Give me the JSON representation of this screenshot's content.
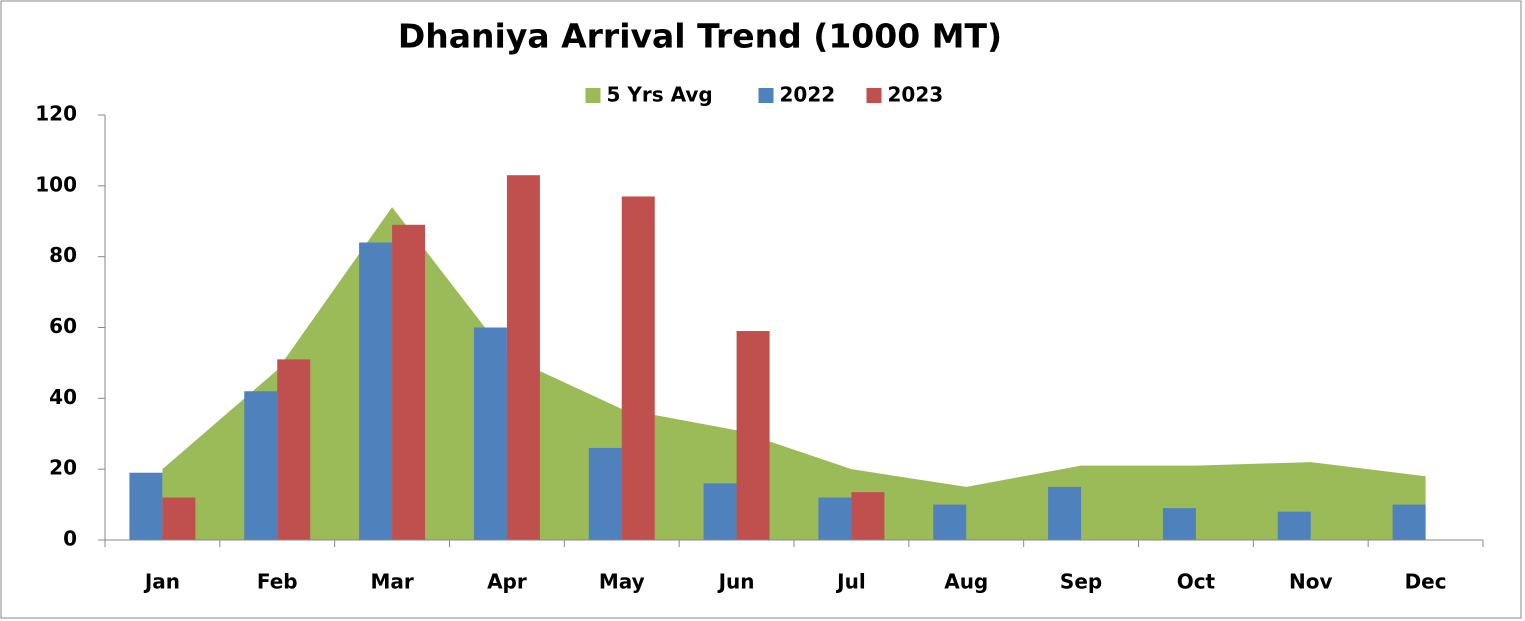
{
  "chart_data": {
    "type": "bar",
    "title": "Dhaniya Arrival Trend (1000 MT)",
    "categories": [
      "Jan",
      "Feb",
      "Mar",
      "Apr",
      "May",
      "Jun",
      "Jul",
      "Aug",
      "Sep",
      "Oct",
      "Nov",
      "Dec"
    ],
    "series": [
      {
        "name": "5 Yrs Avg",
        "type": "area",
        "color": "#9bbb59",
        "values": [
          20,
          48,
          94,
          52,
          37,
          31,
          20,
          15,
          21,
          21,
          22,
          18
        ]
      },
      {
        "name": "2022",
        "type": "bar",
        "color": "#4f81bd",
        "values": [
          19,
          42,
          84,
          60,
          26,
          16,
          12,
          10,
          15,
          9,
          8,
          10
        ]
      },
      {
        "name": "2023",
        "type": "bar",
        "color": "#c0504d",
        "values": [
          12,
          51,
          89,
          103,
          97,
          59,
          13.5,
          null,
          null,
          null,
          null,
          null
        ]
      }
    ],
    "ylim": [
      0,
      120
    ],
    "yticks": [
      0,
      20,
      40,
      60,
      80,
      100,
      120
    ],
    "legend": "top"
  }
}
